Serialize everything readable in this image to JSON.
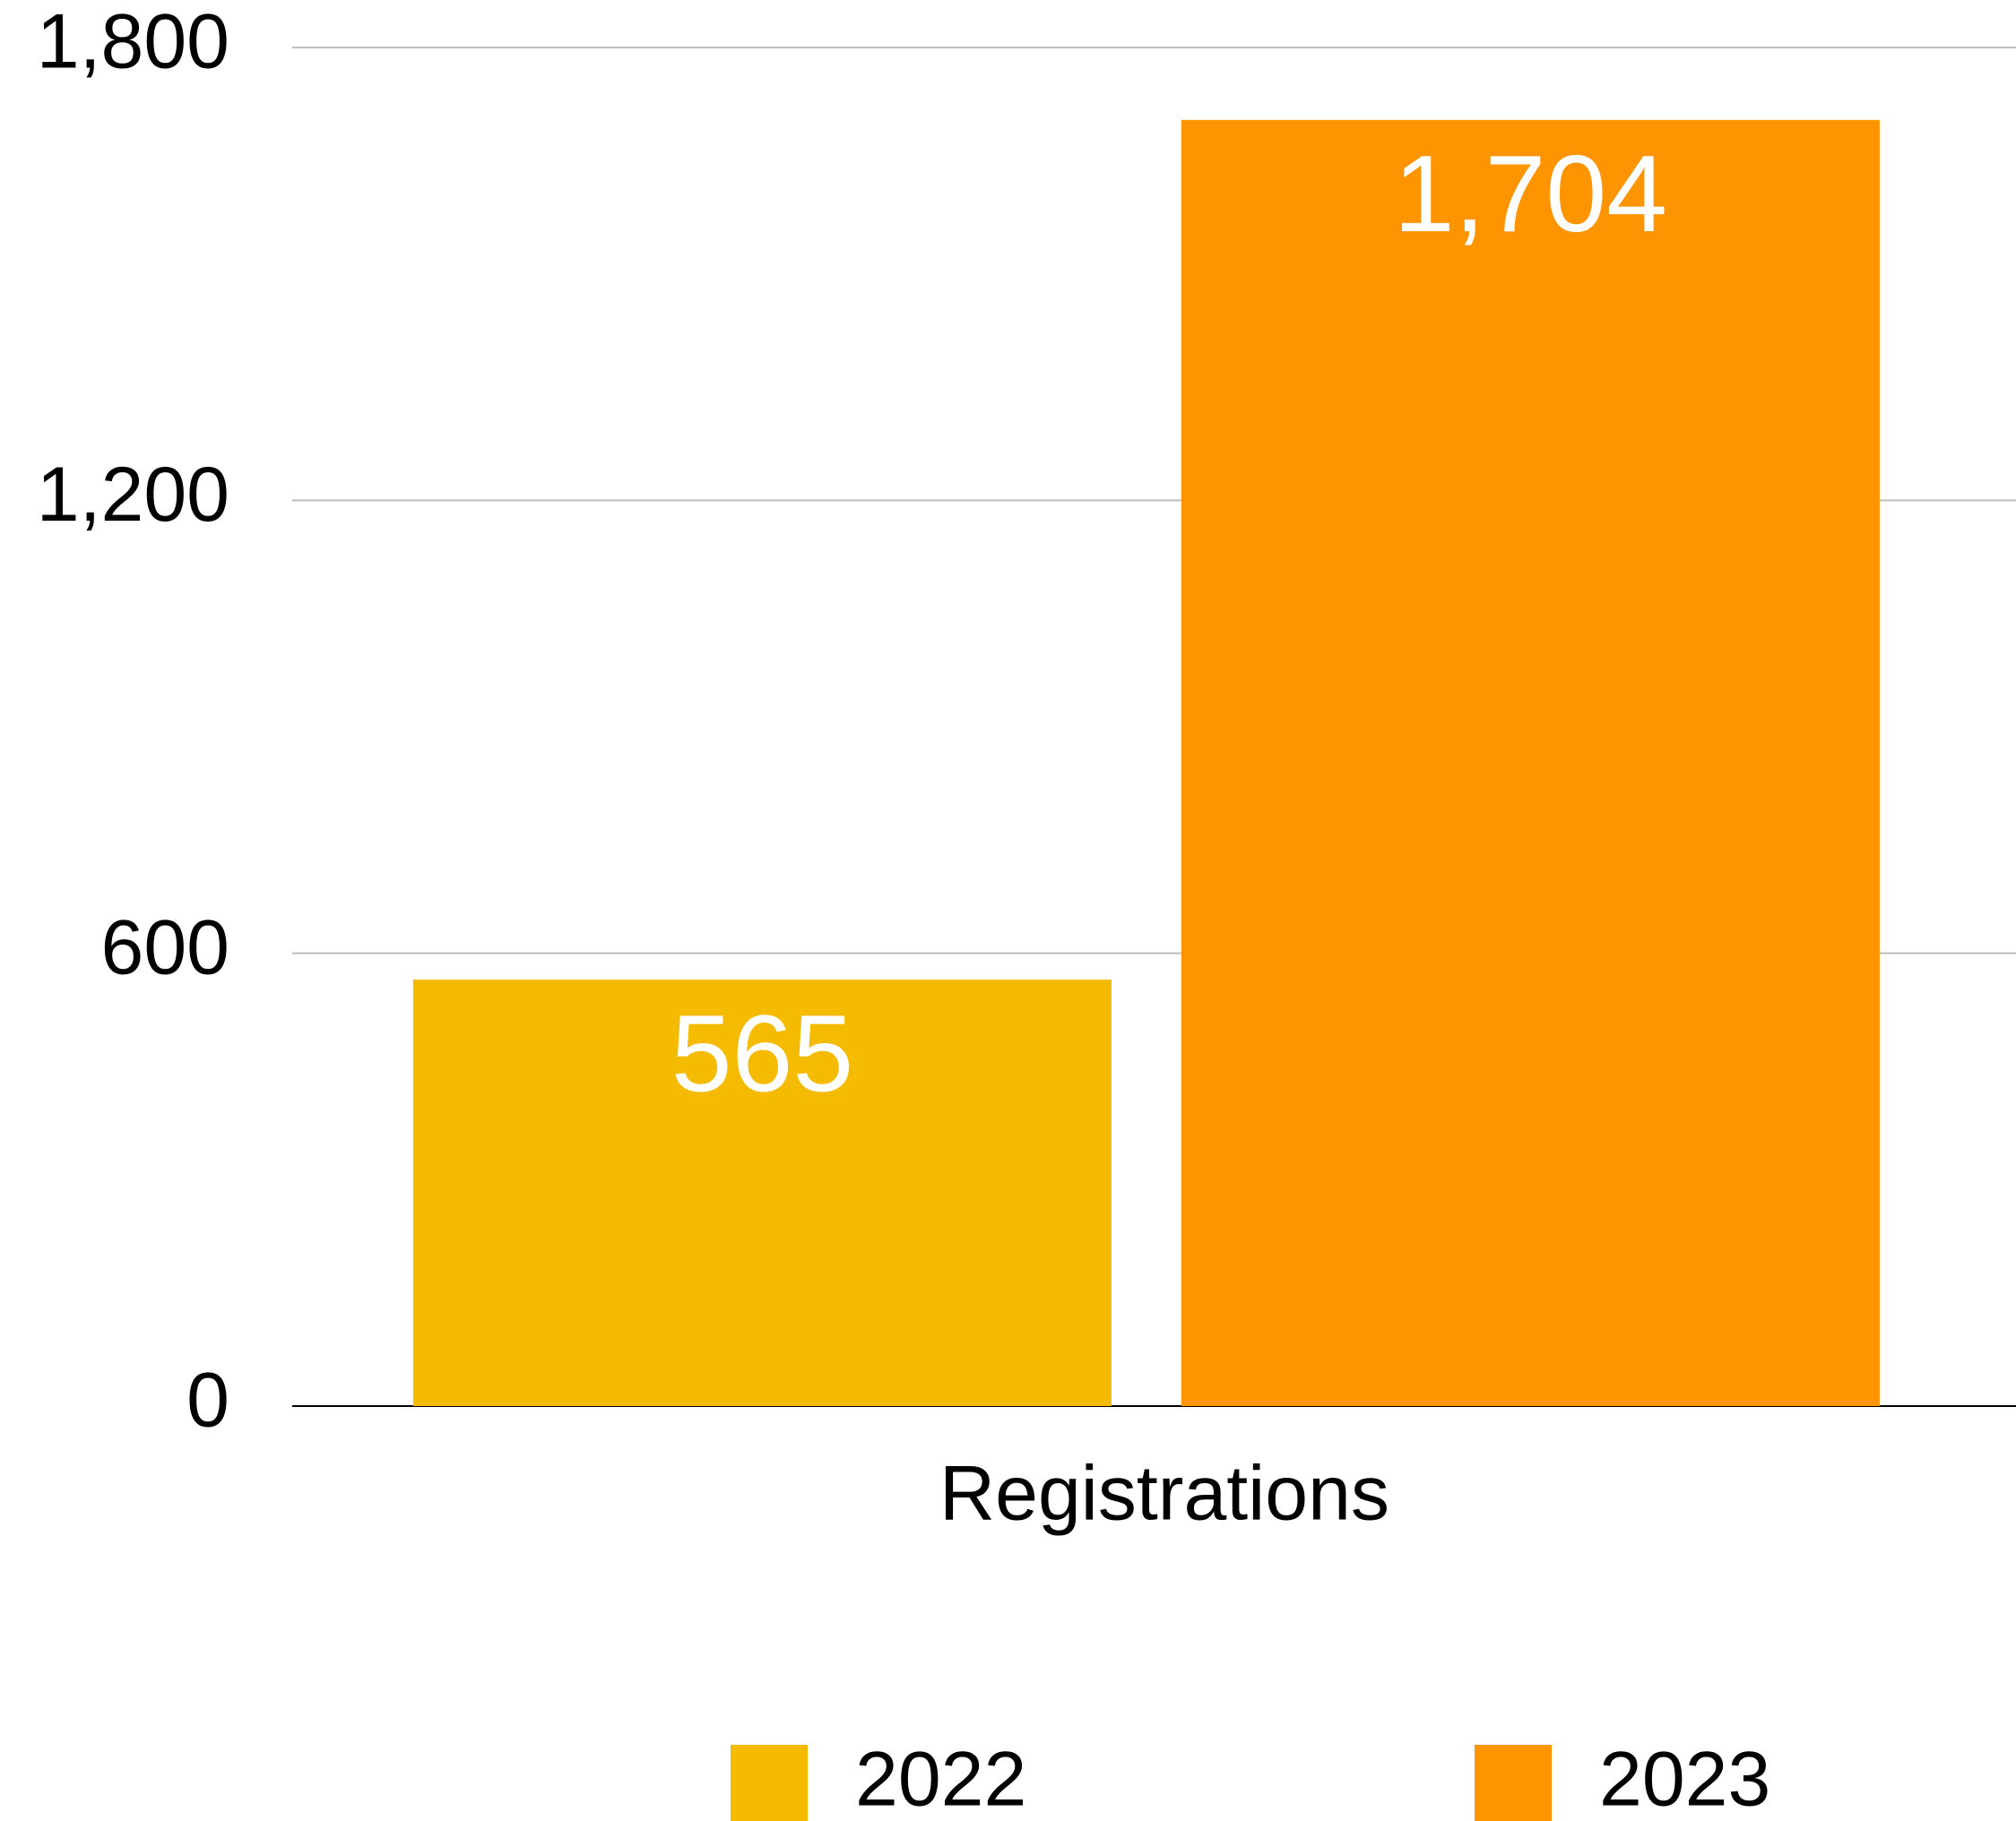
{
  "chart_data": {
    "type": "bar",
    "categories": [
      "Registrations"
    ],
    "series": [
      {
        "name": "2022",
        "color": "#f5bb00",
        "values": [
          565
        ],
        "value_labels": [
          "565"
        ]
      },
      {
        "name": "2023",
        "color": "#fe9400",
        "values": [
          1704
        ],
        "value_labels": [
          "1,704"
        ]
      }
    ],
    "ylim": [
      0,
      1800
    ],
    "yticks": [
      0,
      {
        "value": 600,
        "label": "600"
      },
      {
        "value": 1200,
        "label": "1,200"
      },
      {
        "value": 1800,
        "label": "1,800"
      }
    ],
    "grid": true,
    "legend": "bottom"
  }
}
